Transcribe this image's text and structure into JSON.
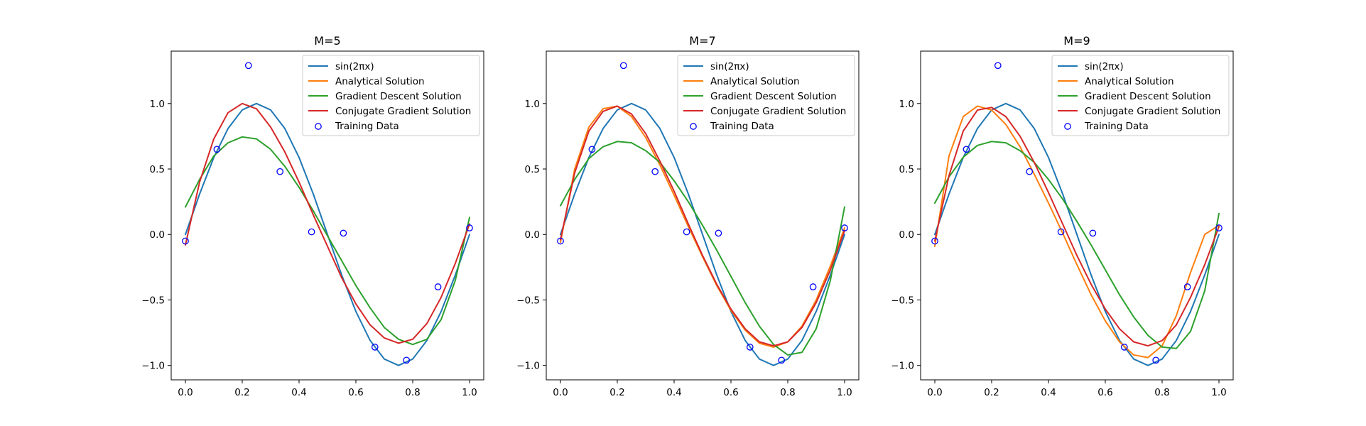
{
  "colors": {
    "sin": "#1f77b4",
    "analytical": "#ff7f0e",
    "gradient": "#2ca02c",
    "conjugate": "#d62728",
    "training": "#0000ff"
  },
  "legend_entries": [
    {
      "key": "sin",
      "label": "sin(2πx)",
      "marker": "line"
    },
    {
      "key": "analytical",
      "label": "Analytical Solution",
      "marker": "line"
    },
    {
      "key": "gradient",
      "label": "Gradient Descent Solution",
      "marker": "line"
    },
    {
      "key": "conjugate",
      "label": "Conjugate Gradient Solution",
      "marker": "line"
    },
    {
      "key": "training",
      "label": "Training Data",
      "marker": "circle"
    }
  ],
  "chart_data": [
    {
      "type": "line",
      "title": "M=5",
      "xlabel": "",
      "ylabel": "",
      "xlim": [
        -0.05,
        1.05
      ],
      "ylim": [
        -1.11,
        1.4
      ],
      "xticks": [
        0.0,
        0.2,
        0.4,
        0.6,
        0.8,
        1.0
      ],
      "xtick_labels": [
        "0.0",
        "0.2",
        "0.4",
        "0.6",
        "0.8",
        "1.0"
      ],
      "yticks": [
        -1.0,
        -0.5,
        0.0,
        0.5,
        1.0
      ],
      "ytick_labels": [
        "−1.0",
        "−0.5",
        "0.0",
        "0.5",
        "1.0"
      ],
      "legend": "top-right",
      "grid": false,
      "training_data": {
        "x": [
          0.0,
          0.111,
          0.222,
          0.333,
          0.444,
          0.556,
          0.667,
          0.778,
          0.889,
          1.0
        ],
        "y": [
          -0.05,
          0.65,
          1.29,
          0.48,
          0.02,
          0.01,
          -0.86,
          -0.96,
          -0.4,
          0.05
        ]
      },
      "series": [
        {
          "key": "sin",
          "x": [
            0.0,
            0.05,
            0.1,
            0.15,
            0.2,
            0.25,
            0.3,
            0.35,
            0.4,
            0.45,
            0.5,
            0.55,
            0.6,
            0.65,
            0.7,
            0.75,
            0.8,
            0.85,
            0.9,
            0.95,
            1.0
          ],
          "y": [
            0.0,
            0.309,
            0.588,
            0.809,
            0.951,
            1.0,
            0.951,
            0.809,
            0.588,
            0.309,
            0.0,
            -0.309,
            -0.588,
            -0.809,
            -0.951,
            -1.0,
            -0.951,
            -0.809,
            -0.588,
            -0.309,
            0.0
          ]
        },
        {
          "key": "gradient",
          "x": [
            0.0,
            0.05,
            0.1,
            0.15,
            0.2,
            0.25,
            0.3,
            0.35,
            0.4,
            0.45,
            0.5,
            0.55,
            0.6,
            0.65,
            0.7,
            0.75,
            0.8,
            0.85,
            0.9,
            0.95,
            1.0
          ],
          "y": [
            0.21,
            0.42,
            0.6,
            0.7,
            0.745,
            0.73,
            0.65,
            0.52,
            0.36,
            0.18,
            -0.01,
            -0.2,
            -0.39,
            -0.56,
            -0.71,
            -0.8,
            -0.84,
            -0.8,
            -0.65,
            -0.35,
            0.13
          ]
        },
        {
          "key": "conjugate",
          "x": [
            0.0,
            0.05,
            0.1,
            0.15,
            0.2,
            0.25,
            0.3,
            0.35,
            0.4,
            0.45,
            0.5,
            0.55,
            0.6,
            0.65,
            0.7,
            0.75,
            0.8,
            0.85,
            0.9,
            0.95,
            1.0
          ],
          "y": [
            -0.08,
            0.4,
            0.73,
            0.93,
            1.0,
            0.96,
            0.82,
            0.63,
            0.4,
            0.15,
            -0.09,
            -0.33,
            -0.53,
            -0.69,
            -0.79,
            -0.83,
            -0.8,
            -0.68,
            -0.48,
            -0.22,
            0.08
          ]
        }
      ]
    },
    {
      "type": "line",
      "title": "M=7",
      "xlabel": "",
      "ylabel": "",
      "xlim": [
        -0.05,
        1.05
      ],
      "ylim": [
        -1.11,
        1.4
      ],
      "xticks": [
        0.0,
        0.2,
        0.4,
        0.6,
        0.8,
        1.0
      ],
      "xtick_labels": [
        "0.0",
        "0.2",
        "0.4",
        "0.6",
        "0.8",
        "1.0"
      ],
      "yticks": [
        -1.0,
        -0.5,
        0.0,
        0.5,
        1.0
      ],
      "ytick_labels": [
        "−1.0",
        "−0.5",
        "0.0",
        "0.5",
        "1.0"
      ],
      "legend": "top-right",
      "grid": false,
      "training_data": {
        "x": [
          0.0,
          0.111,
          0.222,
          0.333,
          0.444,
          0.556,
          0.667,
          0.778,
          0.889,
          1.0
        ],
        "y": [
          -0.05,
          0.65,
          1.29,
          0.48,
          0.02,
          0.01,
          -0.86,
          -0.96,
          -0.4,
          0.05
        ]
      },
      "series": [
        {
          "key": "sin",
          "x": [
            0.0,
            0.05,
            0.1,
            0.15,
            0.2,
            0.25,
            0.3,
            0.35,
            0.4,
            0.45,
            0.5,
            0.55,
            0.6,
            0.65,
            0.7,
            0.75,
            0.8,
            0.85,
            0.9,
            0.95,
            1.0
          ],
          "y": [
            0.0,
            0.309,
            0.588,
            0.809,
            0.951,
            1.0,
            0.951,
            0.809,
            0.588,
            0.309,
            0.0,
            -0.309,
            -0.588,
            -0.809,
            -0.951,
            -1.0,
            -0.951,
            -0.809,
            -0.588,
            -0.309,
            0.0
          ]
        },
        {
          "key": "analytical",
          "x": [
            0.0,
            0.05,
            0.1,
            0.15,
            0.2,
            0.25,
            0.3,
            0.35,
            0.4,
            0.45,
            0.5,
            0.55,
            0.6,
            0.65,
            0.7,
            0.75,
            0.8,
            0.85,
            0.9,
            0.95,
            1.0
          ],
          "y": [
            -0.06,
            0.5,
            0.82,
            0.96,
            0.98,
            0.9,
            0.74,
            0.53,
            0.3,
            0.06,
            -0.17,
            -0.39,
            -0.58,
            -0.73,
            -0.83,
            -0.86,
            -0.82,
            -0.7,
            -0.5,
            -0.24,
            0.05
          ]
        },
        {
          "key": "gradient",
          "x": [
            0.0,
            0.05,
            0.1,
            0.15,
            0.2,
            0.25,
            0.3,
            0.35,
            0.4,
            0.45,
            0.5,
            0.55,
            0.6,
            0.65,
            0.7,
            0.75,
            0.8,
            0.85,
            0.9,
            0.95,
            1.0
          ],
          "y": [
            0.22,
            0.42,
            0.58,
            0.67,
            0.71,
            0.7,
            0.64,
            0.55,
            0.41,
            0.25,
            0.07,
            -0.12,
            -0.32,
            -0.52,
            -0.7,
            -0.84,
            -0.92,
            -0.9,
            -0.72,
            -0.35,
            0.21
          ]
        },
        {
          "key": "conjugate",
          "x": [
            0.0,
            0.05,
            0.1,
            0.15,
            0.2,
            0.25,
            0.3,
            0.35,
            0.4,
            0.45,
            0.5,
            0.55,
            0.6,
            0.65,
            0.7,
            0.75,
            0.8,
            0.85,
            0.9,
            0.95,
            1.0
          ],
          "y": [
            -0.04,
            0.47,
            0.79,
            0.94,
            0.98,
            0.92,
            0.77,
            0.56,
            0.33,
            0.08,
            -0.16,
            -0.38,
            -0.57,
            -0.72,
            -0.82,
            -0.85,
            -0.82,
            -0.71,
            -0.52,
            -0.27,
            0.03
          ]
        }
      ]
    },
    {
      "type": "line",
      "title": "M=9",
      "xlabel": "",
      "ylabel": "",
      "xlim": [
        -0.05,
        1.05
      ],
      "ylim": [
        -1.11,
        1.4
      ],
      "xticks": [
        0.0,
        0.2,
        0.4,
        0.6,
        0.8,
        1.0
      ],
      "xtick_labels": [
        "0.0",
        "0.2",
        "0.4",
        "0.6",
        "0.8",
        "1.0"
      ],
      "yticks": [
        -1.0,
        -0.5,
        0.0,
        0.5,
        1.0
      ],
      "ytick_labels": [
        "−1.0",
        "−0.5",
        "0.0",
        "0.5",
        "1.0"
      ],
      "legend": "top-right",
      "grid": false,
      "training_data": {
        "x": [
          0.0,
          0.111,
          0.222,
          0.333,
          0.444,
          0.556,
          0.667,
          0.778,
          0.889,
          1.0
        ],
        "y": [
          -0.05,
          0.65,
          1.29,
          0.48,
          0.02,
          0.01,
          -0.86,
          -0.96,
          -0.4,
          0.05
        ]
      },
      "series": [
        {
          "key": "sin",
          "x": [
            0.0,
            0.05,
            0.1,
            0.15,
            0.2,
            0.25,
            0.3,
            0.35,
            0.4,
            0.45,
            0.5,
            0.55,
            0.6,
            0.65,
            0.7,
            0.75,
            0.8,
            0.85,
            0.9,
            0.95,
            1.0
          ],
          "y": [
            0.0,
            0.309,
            0.588,
            0.809,
            0.951,
            1.0,
            0.951,
            0.809,
            0.588,
            0.309,
            0.0,
            -0.309,
            -0.588,
            -0.809,
            -0.951,
            -1.0,
            -0.951,
            -0.809,
            -0.588,
            -0.309,
            0.0
          ]
        },
        {
          "key": "analytical",
          "x": [
            0.0,
            0.05,
            0.1,
            0.15,
            0.2,
            0.25,
            0.3,
            0.35,
            0.4,
            0.45,
            0.5,
            0.55,
            0.6,
            0.65,
            0.7,
            0.75,
            0.8,
            0.85,
            0.9,
            0.95,
            1.0
          ],
          "y": [
            -0.09,
            0.6,
            0.9,
            0.98,
            0.95,
            0.84,
            0.67,
            0.46,
            0.24,
            0.01,
            -0.23,
            -0.46,
            -0.66,
            -0.82,
            -0.92,
            -0.94,
            -0.85,
            -0.62,
            -0.29,
            0.0,
            0.07
          ]
        },
        {
          "key": "gradient",
          "x": [
            0.0,
            0.05,
            0.1,
            0.15,
            0.2,
            0.25,
            0.3,
            0.35,
            0.4,
            0.45,
            0.5,
            0.55,
            0.6,
            0.65,
            0.7,
            0.75,
            0.8,
            0.85,
            0.9,
            0.95,
            1.0
          ],
          "y": [
            0.24,
            0.44,
            0.59,
            0.68,
            0.71,
            0.7,
            0.64,
            0.55,
            0.42,
            0.27,
            0.1,
            -0.08,
            -0.27,
            -0.46,
            -0.63,
            -0.77,
            -0.86,
            -0.87,
            -0.74,
            -0.43,
            0.16
          ]
        },
        {
          "key": "conjugate",
          "x": [
            0.0,
            0.05,
            0.1,
            0.15,
            0.2,
            0.25,
            0.3,
            0.35,
            0.4,
            0.45,
            0.5,
            0.55,
            0.6,
            0.65,
            0.7,
            0.75,
            0.8,
            0.85,
            0.9,
            0.95,
            1.0
          ],
          "y": [
            -0.05,
            0.45,
            0.79,
            0.95,
            0.97,
            0.9,
            0.75,
            0.55,
            0.32,
            0.08,
            -0.16,
            -0.38,
            -0.57,
            -0.72,
            -0.82,
            -0.85,
            -0.81,
            -0.69,
            -0.48,
            -0.23,
            0.06
          ]
        }
      ]
    }
  ]
}
